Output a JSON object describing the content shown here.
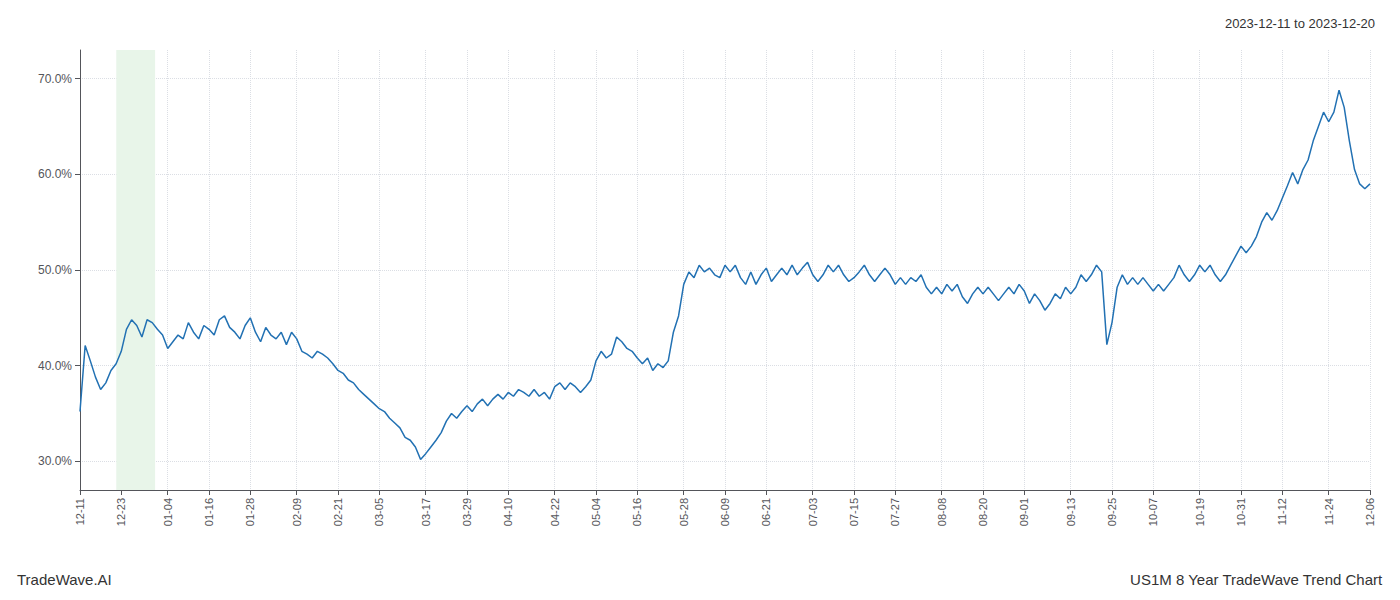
{
  "chart_data": {
    "type": "line",
    "title": "2023-12-11 to 2023-12-20",
    "annotations": [
      "TradeWave.AI",
      "US1M 8 Year TradeWave Trend Chart"
    ],
    "color": "#2271b3",
    "grid": true,
    "ylim": [
      27.0,
      73.0
    ],
    "yticks": [
      {
        "value": 30.0,
        "label": "30.0%"
      },
      {
        "value": 40.0,
        "label": "40.0%"
      },
      {
        "value": 50.0,
        "label": "50.0%"
      },
      {
        "value": 60.0,
        "label": "60.0%"
      },
      {
        "value": 70.0,
        "label": "70.0%"
      }
    ],
    "highlight": {
      "x": [
        7.028,
        14.558
      ],
      "color": "#e8f5e9"
    },
    "categories": [
      "12-11",
      null,
      null,
      null,
      null,
      null,
      null,
      null,
      "12-23",
      null,
      null,
      null,
      null,
      null,
      null,
      null,
      null,
      "01-04",
      null,
      null,
      null,
      null,
      null,
      null,
      null,
      "01-16",
      null,
      null,
      null,
      null,
      null,
      null,
      null,
      "01-28",
      null,
      null,
      null,
      null,
      null,
      null,
      null,
      null,
      "02-09",
      null,
      null,
      null,
      null,
      null,
      null,
      null,
      "02-21",
      null,
      null,
      null,
      null,
      null,
      null,
      null,
      "03-05",
      null,
      null,
      null,
      null,
      null,
      null,
      null,
      null,
      "03-17",
      null,
      null,
      null,
      null,
      null,
      null,
      null,
      "03-29",
      null,
      null,
      null,
      null,
      null,
      null,
      null,
      "04-10",
      null,
      null,
      null,
      null,
      null,
      null,
      null,
      null,
      "04-22",
      null,
      null,
      null,
      null,
      null,
      null,
      null,
      "05-04",
      null,
      null,
      null,
      null,
      null,
      null,
      null,
      "05-16",
      null,
      null,
      null,
      null,
      null,
      null,
      null,
      null,
      "05-28",
      null,
      null,
      null,
      null,
      null,
      null,
      null,
      "06-09",
      null,
      null,
      null,
      null,
      null,
      null,
      null,
      "06-21",
      null,
      null,
      null,
      null,
      null,
      null,
      null,
      null,
      "07-03",
      null,
      null,
      null,
      null,
      null,
      null,
      null,
      "07-15",
      null,
      null,
      null,
      null,
      null,
      null,
      null,
      "07-27",
      null,
      null,
      null,
      null,
      null,
      null,
      null,
      null,
      "08-08",
      null,
      null,
      null,
      null,
      null,
      null,
      null,
      "08-20",
      null,
      null,
      null,
      null,
      null,
      null,
      null,
      "09-01",
      null,
      null,
      null,
      null,
      null,
      null,
      null,
      null,
      "09-13",
      null,
      null,
      null,
      null,
      null,
      null,
      null,
      "09-25",
      null,
      null,
      null,
      null,
      null,
      null,
      null,
      "10-07",
      null,
      null,
      null,
      null,
      null,
      null,
      null,
      null,
      "10-19",
      null,
      null,
      null,
      null,
      null,
      null,
      null,
      "10-31",
      null,
      null,
      null,
      null,
      null,
      null,
      null,
      "11-12",
      null,
      null,
      null,
      null,
      null,
      null,
      null,
      null,
      "11-24",
      null,
      null,
      null,
      null,
      null,
      null,
      null,
      "12-06"
    ],
    "values": [
      35.2,
      42.1,
      40.5,
      38.8,
      37.5,
      38.2,
      39.5,
      40.2,
      41.5,
      43.8,
      44.8,
      44.2,
      43.0,
      44.8,
      44.5,
      43.8,
      43.2,
      41.8,
      42.5,
      43.2,
      42.8,
      44.5,
      43.5,
      42.8,
      44.2,
      43.8,
      43.2,
      44.8,
      45.2,
      44.0,
      43.5,
      42.8,
      44.2,
      45.0,
      43.5,
      42.5,
      44.0,
      43.2,
      42.8,
      43.5,
      42.2,
      43.5,
      42.8,
      41.5,
      41.2,
      40.8,
      41.5,
      41.2,
      40.8,
      40.2,
      39.5,
      39.2,
      38.5,
      38.2,
      37.5,
      37.0,
      36.5,
      36.0,
      35.5,
      35.2,
      34.5,
      34.0,
      33.5,
      32.5,
      32.2,
      31.5,
      30.2,
      30.8,
      31.5,
      32.2,
      33.0,
      34.2,
      35.0,
      34.5,
      35.2,
      35.8,
      35.2,
      36.0,
      36.5,
      35.8,
      36.5,
      37.0,
      36.5,
      37.2,
      36.8,
      37.5,
      37.2,
      36.8,
      37.5,
      36.8,
      37.2,
      36.5,
      37.8,
      38.2,
      37.5,
      38.2,
      37.8,
      37.2,
      37.8,
      38.5,
      40.5,
      41.5,
      40.8,
      41.2,
      43.0,
      42.5,
      41.8,
      41.5,
      40.8,
      40.2,
      40.8,
      39.5,
      40.2,
      39.8,
      40.5,
      43.5,
      45.2,
      48.5,
      49.8,
      49.2,
      50.5,
      49.8,
      50.2,
      49.5,
      49.2,
      50.5,
      49.8,
      50.5,
      49.2,
      48.5,
      49.8,
      48.5,
      49.5,
      50.2,
      48.8,
      49.5,
      50.2,
      49.5,
      50.5,
      49.5,
      50.2,
      50.8,
      49.5,
      48.8,
      49.5,
      50.5,
      49.8,
      50.5,
      49.5,
      48.8,
      49.2,
      49.8,
      50.5,
      49.5,
      48.8,
      49.5,
      50.2,
      49.5,
      48.5,
      49.2,
      48.5,
      49.2,
      48.8,
      49.5,
      48.2,
      47.5,
      48.2,
      47.5,
      48.5,
      47.8,
      48.5,
      47.2,
      46.5,
      47.5,
      48.2,
      47.5,
      48.2,
      47.5,
      46.8,
      47.5,
      48.2,
      47.5,
      48.5,
      47.8,
      46.5,
      47.5,
      46.8,
      45.8,
      46.5,
      47.5,
      47.0,
      48.2,
      47.5,
      48.2,
      49.5,
      48.8,
      49.5,
      50.5,
      49.8,
      42.2,
      44.5,
      48.2,
      49.5,
      48.5,
      49.2,
      48.5,
      49.2,
      48.5,
      47.8,
      48.5,
      47.8,
      48.5,
      49.2,
      50.5,
      49.5,
      48.8,
      49.5,
      50.5,
      49.8,
      50.5,
      49.5,
      48.8,
      49.5,
      50.5,
      51.5,
      52.5,
      51.8,
      52.5,
      53.5,
      55.0,
      56.0,
      55.2,
      56.2,
      57.5,
      58.8,
      60.2,
      59.0,
      60.5,
      61.5,
      63.5,
      65.0,
      66.5,
      65.5,
      66.5,
      68.8,
      67.0,
      63.5,
      60.5,
      59.0,
      58.5,
      59.0
    ]
  }
}
